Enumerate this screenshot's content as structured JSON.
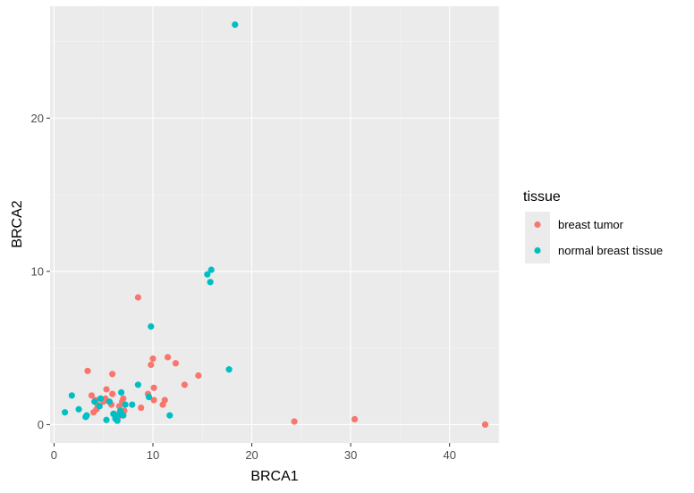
{
  "chart_data": {
    "type": "scatter",
    "xlabel": "BRCA1",
    "ylabel": "BRCA2",
    "xlim": [
      -0.4,
      45
    ],
    "ylim": [
      -1.2,
      27.3
    ],
    "x_ticks": [
      0,
      10,
      20,
      30,
      40
    ],
    "y_ticks": [
      0,
      10,
      20
    ],
    "grid": true,
    "legend": {
      "title": "tissue",
      "position": "right"
    },
    "series": [
      {
        "name": "breast tumor",
        "color": "#F8766D",
        "points": [
          [
            3.4,
            3.5
          ],
          [
            3.8,
            1.9
          ],
          [
            4.2,
            1.6
          ],
          [
            4.4,
            1.3
          ],
          [
            4.3,
            1.0
          ],
          [
            4.0,
            0.8
          ],
          [
            5.0,
            1.5
          ],
          [
            5.2,
            1.7
          ],
          [
            5.3,
            2.3
          ],
          [
            5.8,
            1.3
          ],
          [
            5.9,
            2.0
          ],
          [
            5.9,
            3.3
          ],
          [
            6.1,
            0.7
          ],
          [
            6.5,
            0.5
          ],
          [
            6.6,
            1.2
          ],
          [
            6.9,
            1.5
          ],
          [
            7.0,
            1.7
          ],
          [
            7.1,
            0.9
          ],
          [
            8.5,
            8.3
          ],
          [
            8.8,
            1.1
          ],
          [
            9.5,
            2.0
          ],
          [
            9.8,
            3.9
          ],
          [
            10.0,
            4.3
          ],
          [
            10.1,
            2.4
          ],
          [
            10.1,
            1.6
          ],
          [
            11.0,
            1.3
          ],
          [
            11.2,
            1.6
          ],
          [
            11.5,
            4.4
          ],
          [
            12.3,
            4.0
          ],
          [
            13.2,
            2.6
          ],
          [
            14.6,
            3.2
          ],
          [
            24.3,
            0.2
          ],
          [
            30.4,
            0.35
          ],
          [
            43.6,
            0.0
          ]
        ]
      },
      {
        "name": "normal breast tissue",
        "color": "#00BFC4",
        "points": [
          [
            1.1,
            0.8
          ],
          [
            1.8,
            1.9
          ],
          [
            2.5,
            1.0
          ],
          [
            3.2,
            0.5
          ],
          [
            3.3,
            0.6
          ],
          [
            4.1,
            1.5
          ],
          [
            4.6,
            1.2
          ],
          [
            4.7,
            1.7
          ],
          [
            5.3,
            0.3
          ],
          [
            5.6,
            1.5
          ],
          [
            6.0,
            0.7
          ],
          [
            6.2,
            0.4
          ],
          [
            6.4,
            0.25
          ],
          [
            6.5,
            0.6
          ],
          [
            6.7,
            0.9
          ],
          [
            6.8,
            2.1
          ],
          [
            7.0,
            0.6
          ],
          [
            7.2,
            1.3
          ],
          [
            7.9,
            1.3
          ],
          [
            8.5,
            2.6
          ],
          [
            9.6,
            1.8
          ],
          [
            9.8,
            6.4
          ],
          [
            11.7,
            0.6
          ],
          [
            15.5,
            9.8
          ],
          [
            15.8,
            9.3
          ],
          [
            15.9,
            10.1
          ],
          [
            17.7,
            3.6
          ],
          [
            18.3,
            26.1
          ]
        ]
      }
    ]
  }
}
